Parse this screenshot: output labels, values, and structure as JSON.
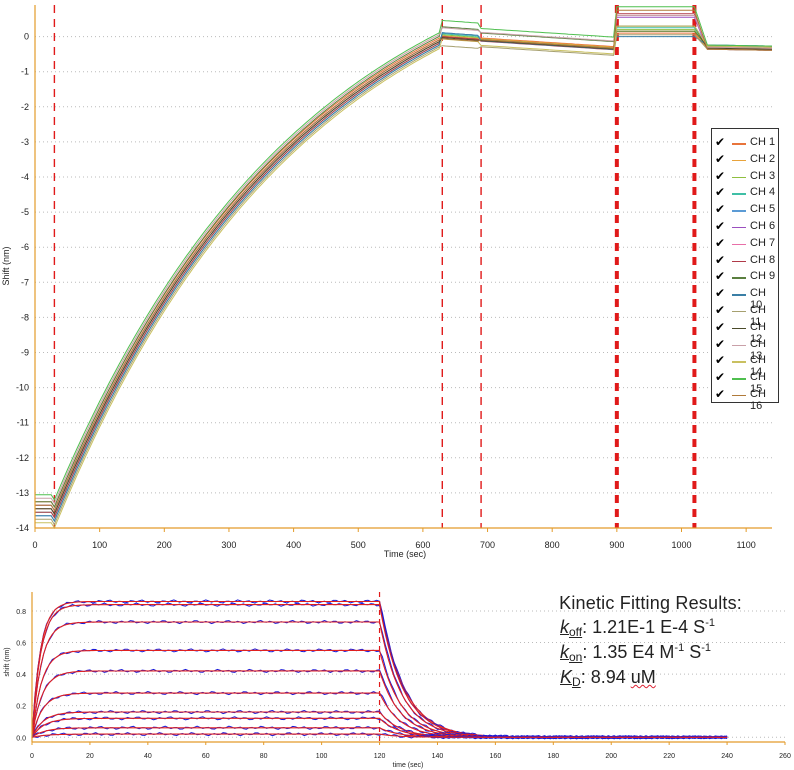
{
  "chart_data": [
    {
      "type": "line",
      "xlabel": "Time (sec)",
      "ylabel": "Shift (nm)",
      "xlim": [
        0,
        1140
      ],
      "ylim": [
        -14,
        0.9
      ],
      "x_ticks": [
        "0",
        "100",
        "200",
        "300",
        "400",
        "500",
        "600",
        "700",
        "800",
        "900",
        "1000",
        "1100"
      ],
      "y_ticks": [
        "0",
        "-1",
        "-2",
        "-3",
        "-4",
        "-5",
        "-6",
        "-7",
        "-8",
        "-9",
        "-10",
        "-11",
        "-12",
        "-13",
        "-14"
      ],
      "phase_markers": [
        30,
        630,
        690,
        900,
        1020
      ],
      "grid": true,
      "legend_position": "right",
      "series": [
        {
          "name": "CH 1",
          "color": "#e8743b",
          "start": -13.4,
          "plateau": 0.0
        },
        {
          "name": "CH 2",
          "color": "#e8a33b",
          "start": -13.5,
          "plateau": -0.05
        },
        {
          "name": "CH 3",
          "color": "#8fbf3f",
          "start": -13.6,
          "plateau": -0.1
        },
        {
          "name": "CH 4",
          "color": "#3fbfa6",
          "start": -13.7,
          "plateau": -0.15
        },
        {
          "name": "CH 5",
          "color": "#5b9bd5",
          "start": -13.8,
          "plateau": -0.2
        },
        {
          "name": "CH 6",
          "color": "#9b4fbf",
          "start": -13.5,
          "plateau": -0.05
        },
        {
          "name": "CH 7",
          "color": "#e86fa8",
          "start": -13.6,
          "plateau": -0.1
        },
        {
          "name": "CH 8",
          "color": "#b03a48",
          "start": -13.7,
          "plateau": -0.15
        },
        {
          "name": "CH 9",
          "color": "#5a7f3f",
          "start": -13.4,
          "plateau": 0.05
        },
        {
          "name": "CH 10",
          "color": "#3a7fa6",
          "start": -13.8,
          "plateau": -0.2
        },
        {
          "name": "CH 11",
          "color": "#a6a06f",
          "start": -13.9,
          "plateau": -0.25
        },
        {
          "name": "CH 12",
          "color": "#4a4a2a",
          "start": -13.6,
          "plateau": -0.1
        },
        {
          "name": "CH 13",
          "color": "#c9a0a8",
          "start": -13.3,
          "plateau": 0.1
        },
        {
          "name": "CH 14",
          "color": "#c9c060",
          "start": -14.0,
          "plateau": -0.3
        },
        {
          "name": "CH 15",
          "color": "#4fbf4f",
          "start": -13.2,
          "plateau": 0.15
        },
        {
          "name": "CH 16",
          "color": "#b07a3a",
          "start": -13.5,
          "plateau": -0.05
        }
      ]
    },
    {
      "type": "line",
      "xlabel": "time (sec)",
      "ylabel": "shift (nm)",
      "xlim": [
        0,
        260
      ],
      "ylim": [
        -0.03,
        0.92
      ],
      "x_ticks": [
        "0",
        "20",
        "40",
        "60",
        "80",
        "100",
        "120",
        "140",
        "160",
        "180",
        "200",
        "220",
        "240",
        "260"
      ],
      "y_ticks": [
        "0.0",
        "0.2",
        "0.4",
        "0.6",
        "0.8"
      ],
      "marker_x": 120,
      "grid": true,
      "plateaus": [
        0.86,
        0.84,
        0.73,
        0.55,
        0.42,
        0.28,
        0.16,
        0.12,
        0.06,
        0.02
      ],
      "series_colors": {
        "measured": "#1a1ad8",
        "fit": "#e02020"
      }
    }
  ],
  "fit_results": {
    "title": "Kinetic Fitting Results:",
    "koff": {
      "k": "k",
      "sub": "off",
      "value": ": 1.21E-1 E-4 S",
      "sup": "-1"
    },
    "kon": {
      "k": "k",
      "sub": "on",
      "value": ": 1.35 E4 M",
      "sup1": "-1",
      "value2": " S",
      "sup2": "-1"
    },
    "kd": {
      "k": "K",
      "sub": "D",
      "value": ": 8.94 ",
      "unit": "uM"
    }
  }
}
